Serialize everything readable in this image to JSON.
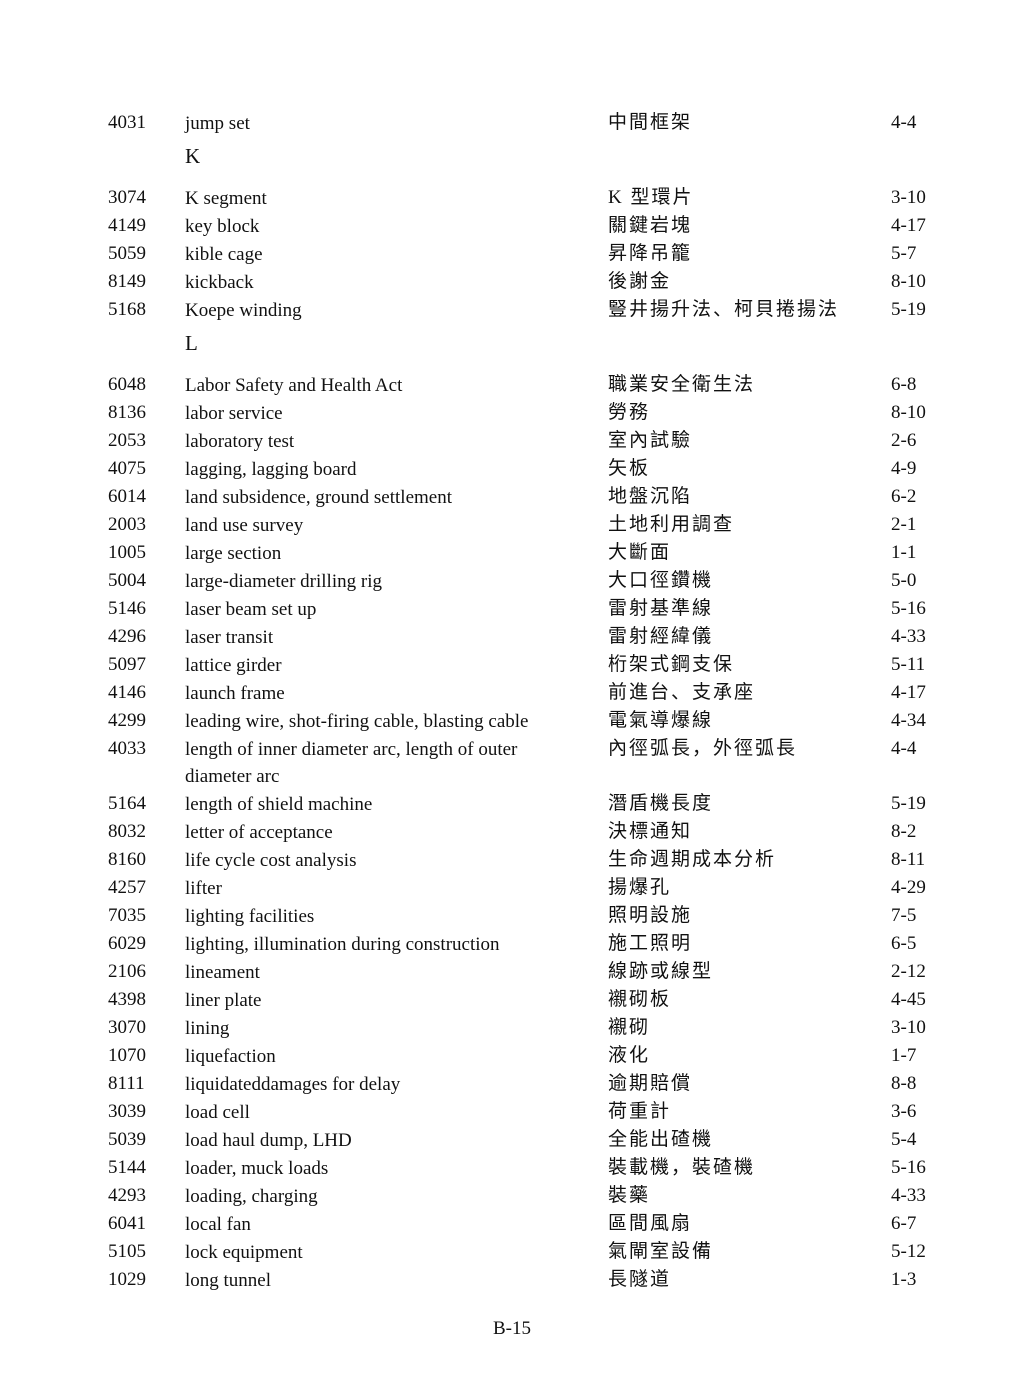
{
  "sections": [
    {
      "letter": "",
      "entries": [
        {
          "num": "4031",
          "en": "jump set",
          "zh": "中間框架",
          "page": "4-4"
        }
      ]
    },
    {
      "letter": "K",
      "entries": [
        {
          "num": "3074",
          "en": "K segment",
          "zh": "K 型環片",
          "page": "3-10"
        },
        {
          "num": "4149",
          "en": "key block",
          "zh": "關鍵岩塊",
          "page": "4-17"
        },
        {
          "num": "5059",
          "en": "kible cage",
          "zh": "昇降吊籠",
          "page": "5-7"
        },
        {
          "num": "8149",
          "en": "kickback",
          "zh": "後謝金",
          "page": "8-10"
        },
        {
          "num": "5168",
          "en": "Koepe winding",
          "zh": "豎井揚升法、柯貝捲揚法",
          "page": "5-19"
        }
      ]
    },
    {
      "letter": "L",
      "entries": [
        {
          "num": "6048",
          "en": "Labor Safety and Health Act",
          "zh": "職業安全衛生法",
          "page": "6-8"
        },
        {
          "num": "8136",
          "en": "labor service",
          "zh": "勞務",
          "page": "8-10"
        },
        {
          "num": "2053",
          "en": "laboratory test",
          "zh": "室內試驗",
          "page": "2-6"
        },
        {
          "num": "4075",
          "en": "lagging, lagging board",
          "zh": "矢板",
          "page": "4-9"
        },
        {
          "num": "6014",
          "en": "land subsidence, ground settlement",
          "zh": "地盤沉陷",
          "page": "6-2"
        },
        {
          "num": "2003",
          "en": "land use survey",
          "zh": "土地利用調查",
          "page": "2-1"
        },
        {
          "num": "1005",
          "en": "large section",
          "zh": "大斷面",
          "page": "1-1"
        },
        {
          "num": "5004",
          "en": "large-diameter drilling rig",
          "zh": "大口徑鑽機",
          "page": "5-0"
        },
        {
          "num": "5146",
          "en": "laser beam set up",
          "zh": "雷射基準線",
          "page": "5-16"
        },
        {
          "num": "4296",
          "en": "laser transit",
          "zh": "雷射經緯儀",
          "page": "4-33"
        },
        {
          "num": "5097",
          "en": "lattice girder",
          "zh": "桁架式鋼支保",
          "page": "5-11"
        },
        {
          "num": "4146",
          "en": "launch frame",
          "zh": "前進台、支承座",
          "page": "4-17"
        },
        {
          "num": "4299",
          "en": "leading wire, shot-firing cable, blasting cable",
          "zh": "電氣導爆線",
          "page": "4-34"
        },
        {
          "num": "4033",
          "en": "length of inner diameter arc, length of outer diameter arc",
          "zh": "內徑弧長，外徑弧長",
          "page": "4-4",
          "multiline": true
        },
        {
          "num": "5164",
          "en": "length of shield machine",
          "zh": "潛盾機長度",
          "page": "5-19"
        },
        {
          "num": "8032",
          "en": "letter of acceptance",
          "zh": "決標通知",
          "page": "8-2"
        },
        {
          "num": "8160",
          "en": "life cycle cost analysis",
          "zh": "生命週期成本分析",
          "page": "8-11"
        },
        {
          "num": "4257",
          "en": "lifter",
          "zh": "揚爆孔",
          "page": "4-29"
        },
        {
          "num": "7035",
          "en": "lighting facilities",
          "zh": "照明設施",
          "page": "7-5"
        },
        {
          "num": "6029",
          "en": "lighting, illumination during construction",
          "zh": "施工照明",
          "page": "6-5"
        },
        {
          "num": "2106",
          "en": "lineament",
          "zh": "線跡或線型",
          "page": "2-12"
        },
        {
          "num": "4398",
          "en": "liner plate",
          "zh": "襯砌板",
          "page": "4-45"
        },
        {
          "num": "3070",
          "en": "lining",
          "zh": "襯砌",
          "page": "3-10"
        },
        {
          "num": "1070",
          "en": "liquefaction",
          "zh": "液化",
          "page": "1-7"
        },
        {
          "num": "8111",
          "en": "liquidateddamages for delay",
          "zh": "逾期賠償",
          "page": "8-8"
        },
        {
          "num": "3039",
          "en": "load cell",
          "zh": "荷重計",
          "page": "3-6"
        },
        {
          "num": "5039",
          "en": "load haul dump, LHD",
          "zh": "全能出碴機",
          "page": "5-4"
        },
        {
          "num": "5144",
          "en": "loader, muck loads",
          "zh": "裝載機，裝碴機",
          "page": "5-16"
        },
        {
          "num": "4293",
          "en": "loading, charging",
          "zh": "裝藥",
          "page": "4-33"
        },
        {
          "num": "6041",
          "en": "local fan",
          "zh": "區間風扇",
          "page": "6-7"
        },
        {
          "num": "5105",
          "en": "lock equipment",
          "zh": "氣閘室設備",
          "page": "5-12"
        },
        {
          "num": "1029",
          "en": "long tunnel",
          "zh": "長隧道",
          "page": "1-3"
        }
      ]
    }
  ],
  "footer": {
    "page_number": "B-15"
  }
}
